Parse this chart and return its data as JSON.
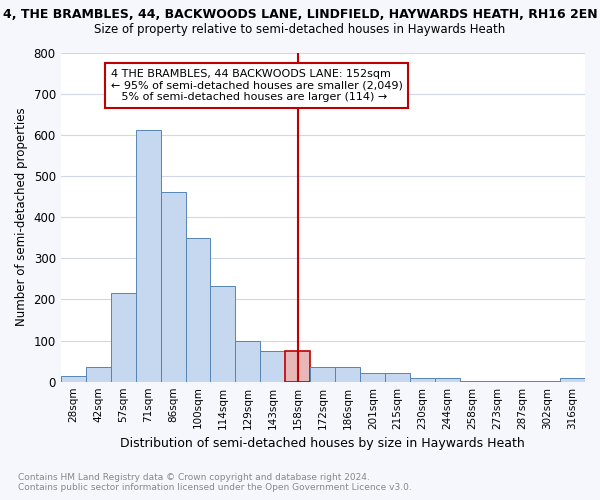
{
  "title": "4, THE BRAMBLES, 44, BACKWOODS LANE, LINDFIELD, HAYWARDS HEATH, RH16 2EN",
  "subtitle": "Size of property relative to semi-detached houses in Haywards Heath",
  "xlabel": "Distribution of semi-detached houses by size in Haywards Heath",
  "ylabel": "Number of semi-detached properties",
  "categories": [
    "28sqm",
    "42sqm",
    "57sqm",
    "71sqm",
    "86sqm",
    "100sqm",
    "114sqm",
    "129sqm",
    "143sqm",
    "158sqm",
    "172sqm",
    "186sqm",
    "201sqm",
    "215sqm",
    "230sqm",
    "244sqm",
    "258sqm",
    "273sqm",
    "287sqm",
    "302sqm",
    "316sqm"
  ],
  "values": [
    15,
    35,
    215,
    612,
    461,
    350,
    233,
    100,
    75,
    75,
    35,
    35,
    22,
    22,
    10,
    10,
    2,
    2,
    2,
    1,
    8
  ],
  "highlight_index": 9,
  "highlight_color": "#c00000",
  "bar_color": "#c5d8f0",
  "bar_edge_color": "#5585b5",
  "annotation_title": "4 THE BRAMBLES, 44 BACKWOODS LANE: 152sqm",
  "annotation_line1": "← 95% of semi-detached houses are smaller (2,049)",
  "annotation_line2": "5% of semi-detached houses are larger (114) →",
  "vline_index": 9,
  "ylim": [
    0,
    800
  ],
  "yticks": [
    0,
    100,
    200,
    300,
    400,
    500,
    600,
    700,
    800
  ],
  "footer1": "Contains HM Land Registry data © Crown copyright and database right 2024.",
  "footer2": "Contains public sector information licensed under the Open Government Licence v3.0.",
  "background_color": "#f5f7fc",
  "plot_bg_color": "#ffffff"
}
